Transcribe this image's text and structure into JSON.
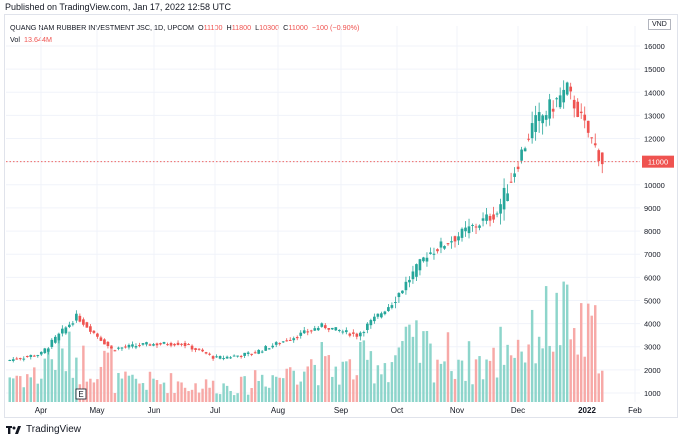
{
  "published": "Published on TradingView.com, Jan 17, 2022 12:58 UTC",
  "header": {
    "symbol": "QUANG NAM RUBBER INVESTMENT JSC, 1D, UPCOM",
    "o_label": "O",
    "o_value": "11100",
    "h_label": "H",
    "h_value": "11800",
    "l_label": "L",
    "l_value": "10300",
    "c_label": "C",
    "c_value": "11000",
    "change": "−100 (−0.90%)",
    "vol_label": "Vol",
    "vol_value": "13.644M"
  },
  "unit_badge": "VND",
  "footer_brand": "TradingView",
  "colors": {
    "up": "#26a69a",
    "down": "#ef5350",
    "up_vol": "#8dd5cb",
    "down_vol": "#f7a9a7",
    "grid": "#f0f3fa",
    "price_line": "#ef5350"
  },
  "chart_data": {
    "type": "candlestick",
    "title": "QUANG NAM RUBBER INVESTMENT JSC, 1D, UPCOM",
    "ylabel": "VND",
    "ylim": [
      400,
      16800
    ],
    "y_ticks": [
      1000,
      2000,
      3000,
      4000,
      5000,
      6000,
      7000,
      8000,
      9000,
      10000,
      11000,
      12000,
      13000,
      14000,
      15000,
      16000
    ],
    "x_ticks": [
      "Apr",
      "May",
      "Jun",
      "Jul",
      "Aug",
      "Sep",
      "Oct",
      "Nov",
      "Dec",
      "2022",
      "Feb"
    ],
    "last_price": 11000,
    "earnings_marker": "E",
    "segments": [
      {
        "month": "Mar",
        "start": 2400,
        "end": 2700,
        "vol": 8
      },
      {
        "month": "Apr",
        "start": 2700,
        "end": 4300,
        "vol": 14
      },
      {
        "month": "Apr",
        "start": 4300,
        "end": 2900,
        "vol": 12
      },
      {
        "month": "May",
        "start": 2900,
        "end": 3100,
        "vol": 6
      },
      {
        "month": "Jun",
        "start": 3100,
        "end": 3150,
        "vol": 6
      },
      {
        "month": "Jul",
        "start": 3150,
        "end": 2500,
        "vol": 5
      },
      {
        "month": "Aug",
        "start": 2500,
        "end": 2700,
        "vol": 5
      },
      {
        "month": "Aug",
        "start": 2700,
        "end": 3300,
        "vol": 8
      },
      {
        "month": "Sep",
        "start": 3300,
        "end": 3900,
        "vol": 12
      },
      {
        "month": "Oct",
        "start": 3900,
        "end": 3500,
        "vol": 10
      },
      {
        "month": "Oct",
        "start": 3500,
        "end": 4900,
        "vol": 12
      },
      {
        "month": "Nov",
        "start": 4900,
        "end": 7000,
        "vol": 16
      },
      {
        "month": "Nov",
        "start": 7000,
        "end": 7900,
        "vol": 14
      },
      {
        "month": "Dec",
        "start": 7900,
        "end": 8800,
        "vol": 12
      },
      {
        "month": "Dec",
        "start": 8800,
        "end": 12500,
        "vol": 18
      },
      {
        "month": "Jan",
        "start": 12500,
        "end": 14100,
        "vol": 24
      },
      {
        "month": "Jan",
        "start": 14100,
        "end": 11000,
        "vol": 20
      }
    ]
  }
}
